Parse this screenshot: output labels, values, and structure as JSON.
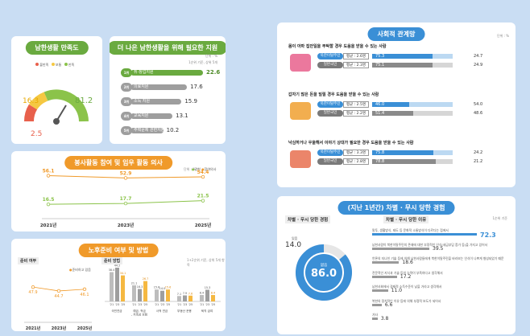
{
  "satisfaction": {
    "title": "남한생활 만족도",
    "legend": [
      "불만족",
      "보통",
      "만족"
    ],
    "legend_colors": [
      "#e8604c",
      "#f5c842",
      "#8bc34a"
    ],
    "values": {
      "dissatisfied": "2.5",
      "neutral": "16.3",
      "satisfied": "81.2"
    },
    "unit": "단위 : %"
  },
  "support": {
    "title": "더 나은 남한생활을 위해 필요한 지원",
    "unit": "단위 : %",
    "note": "1순위 기준, 상위 5개",
    "items": [
      {
        "rank": "1위",
        "label": "취·창업지원",
        "value": "22.6"
      },
      {
        "rank": "2위",
        "label": "의료지원",
        "value": "17.6"
      },
      {
        "rank": "3위",
        "label": "소득 지원",
        "value": "15.9"
      },
      {
        "rank": "4위",
        "label": "교육지원",
        "value": "13.1"
      },
      {
        "rank": "5위",
        "label": "주택문제 관련지원",
        "value": "10.2"
      }
    ]
  },
  "social_activity": {
    "title": "봉사활동 참여 및 임우 활동 의사",
    "unit": "단위 : %",
    "legend": [
      "경험",
      "참여의사"
    ],
    "years": [
      "2021년",
      "2023년",
      "2025년"
    ],
    "chart_data": {
      "type": "line",
      "x": [
        "2021년",
        "2023년",
        "2025년"
      ],
      "series": [
        {
          "name": "참여의사",
          "values": [
            56.1,
            52.9,
            54.4
          ]
        },
        {
          "name": "경험",
          "values": [
            16.5,
            17.7,
            21.5
          ]
        }
      ]
    }
  },
  "retirement": {
    "title": "노후준비 여부 및 방법",
    "left_label": "준비 여부",
    "left_legend": "준비하고 있음",
    "left_years": [
      "2021년",
      "2023년",
      "2025년"
    ],
    "left_values": [
      "47.9",
      "44.7",
      "46.1"
    ],
    "right_label": "준비 방법",
    "right_note": "1+2순위 기준, 상위 5개 항목",
    "groups": [
      "국민연금",
      "예금, 적금, 저축성 보험",
      "사적 연금",
      "부동산 운용",
      "퇴직 급여"
    ],
    "years_short": [
      "'21",
      "'23",
      "'25"
    ],
    "chart_data": {
      "type": "bar",
      "categories": [
        "국민연금",
        "예금, 적금, 저축성 보험",
        "사적 연금",
        "부동산 운용",
        "퇴직 급여"
      ],
      "series": [
        {
          "name": "'21",
          "values": [
            38.4,
            21.1,
            15.6,
            7.1,
            8.4
          ]
        },
        {
          "name": "'23",
          "values": [
            44.2,
            16.3,
            14.0,
            7.9,
            15.3
          ]
        },
        {
          "name": "'25",
          "values": [
            34.1,
            26.7,
            15.6,
            7.6,
            8.4
          ]
        }
      ]
    }
  },
  "social_relations": {
    "title": "사회적 관계망",
    "unit": "단위 : %",
    "questions": [
      {
        "text": "몸이 아파 집안일을 부탁할 경우 도움을 받을 수 있는 사람",
        "rows": [
          {
            "label": "북한이탈주민",
            "avg": "평균 : 2.6명",
            "yes": "75.3",
            "no": "24.7"
          },
          {
            "label": "일반국민",
            "avg": "평균 : 2.3명",
            "yes": "75.1",
            "no": "24.9"
          }
        ]
      },
      {
        "text": "갑자기 많은 돈을 빌릴 경우 도움을 받을 수 있는 사람",
        "rows": [
          {
            "label": "북한이탈주민",
            "avg": "평균 : 2.5명",
            "yes": "46.0",
            "no": "54.0"
          },
          {
            "label": "일반국민",
            "avg": "평균 : 2.2명",
            "yes": "51.4",
            "no": "48.6"
          }
        ]
      },
      {
        "text": "낙심하거나 우울해서 이야기 상대가 필요한 경우 도움을 받을 수 있는 사람",
        "rows": [
          {
            "label": "북한이탈주민",
            "avg": "평균 : 3.3명",
            "yes": "75.8",
            "no": "24.2"
          },
          {
            "label": "일반국민",
            "avg": "평균 : 2.8명",
            "yes": "78.8",
            "no": "21.2"
          }
        ]
      }
    ]
  },
  "discrimination": {
    "title": "(지난 1년간) 차별 · 무시 당한 경험",
    "left_label": "차별 · 무시 당한 경험",
    "no_label": "없음",
    "no_value": "86.0",
    "yes_label": "있음",
    "yes_value": "14.0",
    "right_label": "차별 · 무시 당한 이유",
    "right_note": "1순위 기준",
    "reasons": [
      {
        "label": "말투, 생활방식, 태도 등 문화적 소통방식이 다르다는 점에서",
        "value": "72.3"
      },
      {
        "label": "남한사람이 북한이탈주민의 존재에 대한 부정적인 인식(세금부담 증가 등)을 가지고 있어서",
        "value": "39.5"
      },
      {
        "label": "언론의 지나친 기술 등에 의해 남한사람들에게 북한이탈주민을 바라보는 인식이 나쁘게 형성되었기 때문",
        "value": "18.6"
      },
      {
        "label": "전문적인 지식과 기술 등의 능력이 부족하다고 생각해서",
        "value": "17.2"
      },
      {
        "label": "남한사회에서 경제적 소득수준이 낮을 거라고 생각해서",
        "value": "11.0"
      },
      {
        "label": "북한의 정치적인 이유 등에 의해 부정적 보도가 되어서",
        "value": "6.6"
      },
      {
        "label": "기타",
        "value": "3.8"
      }
    ]
  }
}
